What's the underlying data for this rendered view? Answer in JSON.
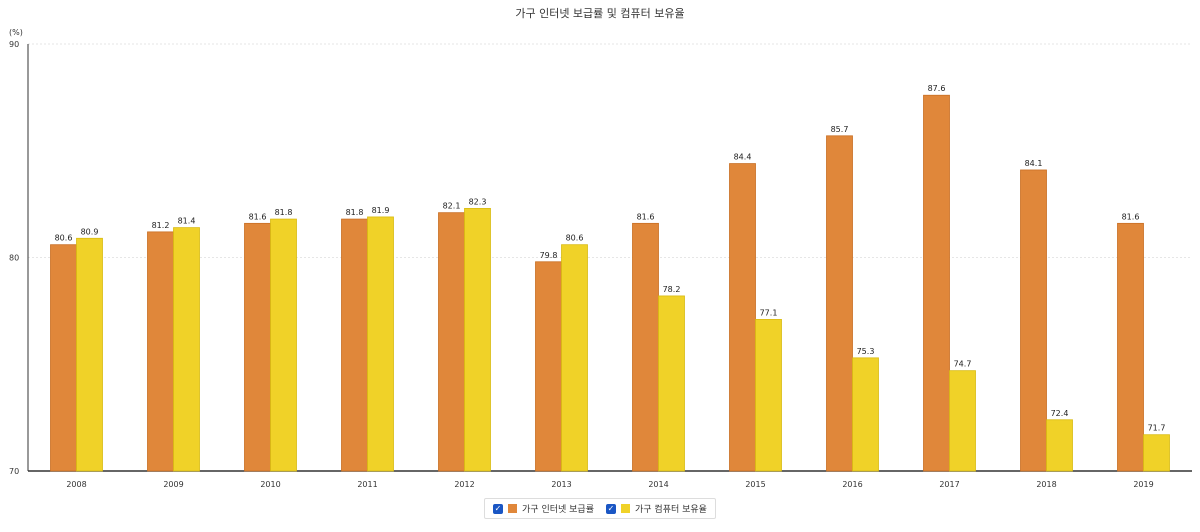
{
  "chart_data": {
    "type": "bar",
    "title": "가구 인터넷 보급률 및 컴퓨터 보유율",
    "ylabel": "(%)",
    "xlabel": "",
    "ylim": [
      70,
      90
    ],
    "yticks": [
      70,
      80,
      90
    ],
    "grid": true,
    "legend_position": "bottom-center",
    "categories": [
      "2008",
      "2009",
      "2010",
      "2011",
      "2012",
      "2013",
      "2014",
      "2015",
      "2016",
      "2017",
      "2018",
      "2019"
    ],
    "series": [
      {
        "name": "가구 인터넷 보급률",
        "color": "#e0873a",
        "values": [
          80.6,
          81.2,
          81.6,
          81.8,
          82.1,
          79.8,
          81.6,
          84.4,
          85.7,
          87.6,
          84.1,
          81.6
        ]
      },
      {
        "name": "가구 컴퓨터 보유율",
        "color": "#f0d228",
        "values": [
          80.9,
          81.4,
          81.8,
          81.9,
          82.3,
          80.6,
          78.2,
          77.1,
          75.3,
          74.7,
          72.4,
          71.7
        ]
      }
    ]
  },
  "legend": {
    "check_glyph": "✓"
  }
}
